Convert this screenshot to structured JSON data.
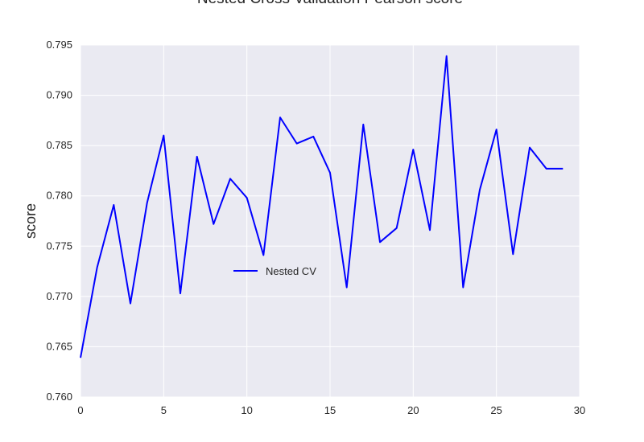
{
  "chart_data": {
    "type": "line",
    "title": "Nested Cross Validation Pearson score",
    "xlabel": "",
    "ylabel": "score",
    "xlim": [
      0,
      30
    ],
    "ylim": [
      0.76,
      0.795
    ],
    "xticks": [
      "0",
      "5",
      "10",
      "15",
      "20",
      "25",
      "30"
    ],
    "yticks": [
      "0.760",
      "0.765",
      "0.770",
      "0.775",
      "0.780",
      "0.785",
      "0.790",
      "0.795"
    ],
    "grid": true,
    "legend_position": "center-left",
    "series": [
      {
        "name": "Nested CV",
        "color": "#0000ff",
        "x": [
          0,
          1,
          2,
          3,
          4,
          5,
          6,
          7,
          8,
          9,
          10,
          11,
          12,
          13,
          14,
          15,
          16,
          17,
          18,
          19,
          20,
          21,
          22,
          23,
          24,
          25,
          26,
          27,
          28,
          29
        ],
        "y": [
          0.7639,
          0.7729,
          0.7791,
          0.7693,
          0.7793,
          0.786,
          0.7703,
          0.7839,
          0.7772,
          0.7817,
          0.7798,
          0.7741,
          0.7878,
          0.7852,
          0.7859,
          0.7823,
          0.7709,
          0.7871,
          0.7754,
          0.7768,
          0.7846,
          0.7766,
          0.7939,
          0.7709,
          0.7806,
          0.7866,
          0.7742,
          0.7848,
          0.7827,
          0.7827
        ]
      }
    ]
  },
  "colors": {
    "plot_background": "#eaeaf2",
    "grid": "#ffffff",
    "line": "#0000ff"
  }
}
